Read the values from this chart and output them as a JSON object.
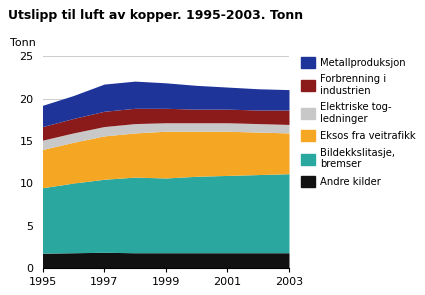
{
  "title": "Utslipp til luft av kopper. 1995-2003. Tonn",
  "ylabel": "Tonn",
  "years": [
    1995,
    1996,
    1997,
    1998,
    1999,
    2000,
    2001,
    2002,
    2003
  ],
  "series": {
    "Andre kilder": {
      "color": "#111111",
      "values": [
        1.8,
        1.85,
        1.9,
        1.85,
        1.85,
        1.85,
        1.85,
        1.85,
        1.85
      ]
    },
    "Bildekkslitasje, bremser": {
      "color": "#2aa8a0",
      "values": [
        7.7,
        8.2,
        8.6,
        8.9,
        8.8,
        9.0,
        9.1,
        9.2,
        9.3
      ]
    },
    "Eksos fra veitrafikk": {
      "color": "#f5a623",
      "values": [
        4.5,
        4.8,
        5.1,
        5.2,
        5.5,
        5.3,
        5.2,
        5.0,
        4.8
      ]
    },
    "Elektriske tog-ledninger": {
      "color": "#c8c8c8",
      "values": [
        1.1,
        1.1,
        1.1,
        1.1,
        1.0,
        1.0,
        1.0,
        1.0,
        1.0
      ]
    },
    "Forbrenning i industrien": {
      "color": "#8b1a1a",
      "values": [
        1.6,
        1.7,
        1.8,
        1.8,
        1.7,
        1.6,
        1.6,
        1.6,
        1.7
      ]
    },
    "Metallproduksjon": {
      "color": "#1f3499",
      "values": [
        2.5,
        2.7,
        3.2,
        3.2,
        3.0,
        2.8,
        2.6,
        2.5,
        2.4
      ]
    }
  },
  "stack_order": [
    "Andre kilder",
    "Bildekkslitasje, bremser",
    "Eksos fra veitrafikk",
    "Elektriske tog-ledninger",
    "Forbrenning i industrien",
    "Metallproduksjon"
  ],
  "legend_order": [
    "Metallproduksjon",
    "Forbrenning i industrien",
    "Elektriske tog-ledninger",
    "Eksos fra veitrafikk",
    "Bildekkslitasje, bremser",
    "Andre kilder"
  ],
  "legend_labels": [
    "Metallproduksjon",
    "Forbrenning i\nindustrien",
    "Elektriske tog-\nledninger",
    "Eksos fra veitrafikk",
    "Bildekkslitasje,\nbremser",
    "Andre kilder"
  ],
  "ylim": [
    0,
    25
  ],
  "yticks": [
    0,
    5,
    10,
    15,
    20,
    25
  ],
  "xticks": [
    1995,
    1997,
    1999,
    2001,
    2003
  ],
  "background_color": "#ffffff",
  "grid_color": "#cccccc"
}
